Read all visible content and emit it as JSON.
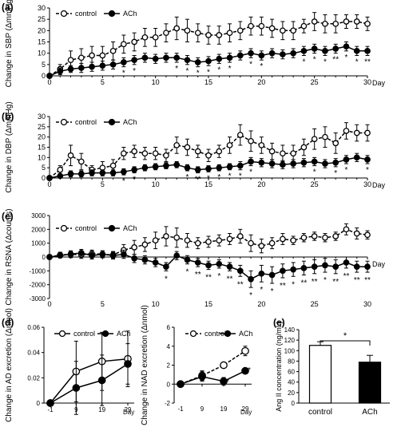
{
  "panels": {
    "a": {
      "letter": "(a)"
    },
    "b": {
      "letter": "(b)"
    },
    "c": {
      "letter": "(c)"
    },
    "d": {
      "letter": "(d)"
    },
    "e": {
      "letter": "(e)"
    }
  },
  "chart_data": [
    {
      "id": "a",
      "type": "line",
      "xlabel": "Day",
      "ylabel": "Change in SBP (ΔmmHg)",
      "xlim": [
        0,
        30
      ],
      "ylim": [
        0,
        30
      ],
      "xticks": [
        0,
        5,
        10,
        15,
        20,
        25,
        30
      ],
      "yticks": [
        0,
        5,
        10,
        15,
        20,
        25,
        30
      ],
      "legend_position": "top-left",
      "series": [
        {
          "name": "control",
          "marker": "open-circle",
          "line": "dashed",
          "x": [
            0,
            1,
            2,
            3,
            4,
            5,
            6,
            7,
            8,
            9,
            10,
            11,
            12,
            13,
            14,
            15,
            16,
            17,
            18,
            19,
            20,
            21,
            22,
            23,
            24,
            25,
            26,
            27,
            28,
            29,
            30
          ],
          "y": [
            0,
            3,
            7,
            8,
            9,
            9,
            11,
            14,
            15,
            17,
            17,
            19,
            21,
            20,
            19,
            18,
            18,
            19,
            20,
            22,
            22,
            21,
            20,
            20,
            22,
            24,
            23,
            23,
            24,
            24,
            23
          ],
          "err": [
            0,
            2,
            4,
            4,
            4,
            4,
            4,
            4,
            4,
            4,
            4,
            4,
            5,
            5,
            4,
            4,
            4,
            4,
            4,
            4,
            4,
            4,
            4,
            4,
            3,
            4,
            4,
            4,
            3,
            3,
            3
          ]
        },
        {
          "name": "ACh",
          "marker": "filled-circle",
          "line": "solid",
          "x": [
            0,
            1,
            2,
            3,
            4,
            5,
            6,
            7,
            8,
            9,
            10,
            11,
            12,
            13,
            14,
            15,
            16,
            17,
            18,
            19,
            20,
            21,
            22,
            23,
            24,
            25,
            26,
            27,
            28,
            29,
            30
          ],
          "y": [
            0,
            2,
            3,
            3.5,
            4,
            4.5,
            5,
            6,
            7,
            8,
            7.5,
            8,
            8,
            7,
            6,
            6.5,
            7.5,
            8,
            9,
            10,
            9,
            10,
            9.5,
            10,
            11,
            12,
            11,
            12,
            13,
            11,
            11
          ],
          "err": [
            0,
            1.5,
            1.5,
            2,
            2,
            2,
            2,
            2,
            2,
            2,
            2,
            2,
            2,
            2,
            2,
            2,
            2,
            2,
            2,
            2,
            2,
            2,
            2,
            2,
            2,
            2,
            2,
            2,
            2,
            2,
            2
          ]
        }
      ],
      "significance": [
        {
          "x": 7,
          "mark": "*"
        },
        {
          "x": 8,
          "mark": "*"
        },
        {
          "x": 12,
          "mark": "*"
        },
        {
          "x": 13,
          "mark": "*"
        },
        {
          "x": 14,
          "mark": "*"
        },
        {
          "x": 15,
          "mark": "*"
        },
        {
          "x": 16,
          "mark": "*"
        },
        {
          "x": 17,
          "mark": "*"
        },
        {
          "x": 19,
          "mark": "*"
        },
        {
          "x": 20,
          "mark": "*"
        },
        {
          "x": 24,
          "mark": "*"
        },
        {
          "x": 25,
          "mark": "*"
        },
        {
          "x": 26,
          "mark": "*"
        },
        {
          "x": 27,
          "mark": "**"
        },
        {
          "x": 28,
          "mark": "*"
        },
        {
          "x": 29,
          "mark": "*"
        },
        {
          "x": 30,
          "mark": "**"
        }
      ]
    },
    {
      "id": "b",
      "type": "line",
      "xlabel": "Day",
      "ylabel": "Change in DBP (ΔmmHg)",
      "xlim": [
        0,
        30
      ],
      "ylim": [
        0,
        30
      ],
      "xticks": [
        0,
        5,
        10,
        15,
        20,
        25,
        30
      ],
      "yticks": [
        0,
        5,
        10,
        15,
        20,
        25,
        30
      ],
      "legend_position": "top-left",
      "series": [
        {
          "name": "control",
          "marker": "open-circle",
          "line": "dashed",
          "x": [
            0,
            1,
            2,
            3,
            4,
            5,
            6,
            7,
            8,
            9,
            10,
            11,
            12,
            13,
            14,
            15,
            16,
            17,
            18,
            19,
            20,
            21,
            22,
            23,
            24,
            25,
            26,
            27,
            28,
            29,
            30
          ],
          "y": [
            0,
            4,
            11,
            8,
            4,
            5,
            6,
            12,
            13,
            12,
            12,
            11,
            16,
            15,
            13,
            11,
            13,
            16,
            21,
            18,
            16,
            13,
            12,
            12,
            15,
            19,
            20,
            17,
            23,
            22,
            22
          ],
          "err": [
            0,
            2,
            5,
            4,
            2,
            3,
            3,
            3,
            3,
            3,
            3,
            3,
            4,
            4,
            3,
            3,
            3,
            4,
            5,
            5,
            4,
            4,
            4,
            4,
            4,
            5,
            5,
            5,
            4,
            4,
            4
          ]
        },
        {
          "name": "ACh",
          "marker": "filled-circle",
          "line": "solid",
          "x": [
            0,
            1,
            2,
            3,
            4,
            5,
            6,
            7,
            8,
            9,
            10,
            11,
            12,
            13,
            14,
            15,
            16,
            17,
            18,
            19,
            20,
            21,
            22,
            23,
            24,
            25,
            26,
            27,
            28,
            29,
            30
          ],
          "y": [
            0,
            1,
            2,
            2,
            2.5,
            2.5,
            2.5,
            3,
            4,
            5,
            5.5,
            6,
            6.5,
            5,
            4,
            4.5,
            5,
            5.5,
            6,
            8,
            7.5,
            7,
            6.5,
            7,
            7.5,
            8,
            7,
            7.5,
            9,
            10,
            9
          ],
          "err": [
            0,
            1,
            1.5,
            1.5,
            1.5,
            1.5,
            1.5,
            1.5,
            1.5,
            1.5,
            1.5,
            1.5,
            1.5,
            1.5,
            1.5,
            1.5,
            1.5,
            1.5,
            2,
            2,
            2,
            2,
            2,
            2,
            2,
            2,
            2,
            2,
            2,
            2,
            2
          ]
        }
      ],
      "significance": [
        {
          "x": 7,
          "mark": "*"
        },
        {
          "x": 8,
          "mark": "*"
        },
        {
          "x": 13,
          "mark": "*"
        },
        {
          "x": 14,
          "mark": "**"
        },
        {
          "x": 15,
          "mark": "*"
        },
        {
          "x": 16,
          "mark": "*"
        },
        {
          "x": 17,
          "mark": "*"
        },
        {
          "x": 18,
          "mark": "*"
        },
        {
          "x": 19,
          "mark": "*"
        },
        {
          "x": 25,
          "mark": "*"
        },
        {
          "x": 27,
          "mark": "*"
        },
        {
          "x": 28,
          "mark": "*"
        },
        {
          "x": 30,
          "mark": "*"
        }
      ]
    },
    {
      "id": "c",
      "type": "line",
      "xlabel": "Day",
      "ylabel": "Change in RSNA (Δcounts)",
      "xlim": [
        0,
        30
      ],
      "ylim": [
        -3000,
        3000
      ],
      "xticks": [
        0,
        5,
        10,
        15,
        20,
        25,
        30
      ],
      "yticks": [
        -3000,
        -2000,
        -1000,
        0,
        1000,
        2000,
        3000
      ],
      "legend_position": "top-left",
      "series": [
        {
          "name": "control",
          "marker": "open-circle",
          "line": "dashed",
          "x": [
            0,
            1,
            2,
            3,
            4,
            5,
            6,
            7,
            8,
            9,
            10,
            11,
            12,
            13,
            14,
            15,
            16,
            17,
            18,
            19,
            20,
            21,
            22,
            23,
            24,
            25,
            26,
            27,
            28,
            29,
            30
          ],
          "y": [
            0,
            150,
            200,
            150,
            250,
            200,
            150,
            500,
            700,
            900,
            1200,
            1500,
            1400,
            1200,
            1000,
            1100,
            1200,
            1300,
            1500,
            1000,
            800,
            1000,
            1300,
            1200,
            1400,
            1500,
            1400,
            1500,
            2000,
            1700,
            1600
          ],
          "err": [
            0,
            200,
            250,
            250,
            250,
            250,
            250,
            400,
            500,
            500,
            600,
            700,
            700,
            500,
            400,
            400,
            400,
            400,
            500,
            600,
            500,
            400,
            400,
            300,
            300,
            300,
            300,
            300,
            400,
            400,
            300
          ]
        },
        {
          "name": "ACh",
          "marker": "filled-circle",
          "line": "solid",
          "x": [
            0,
            1,
            2,
            3,
            4,
            5,
            6,
            7,
            8,
            9,
            10,
            11,
            12,
            13,
            14,
            15,
            16,
            17,
            18,
            19,
            20,
            21,
            22,
            23,
            24,
            25,
            26,
            27,
            28,
            29,
            30
          ],
          "y": [
            0,
            100,
            200,
            300,
            100,
            200,
            100,
            200,
            -100,
            -200,
            -400,
            -700,
            100,
            -200,
            -400,
            -600,
            -500,
            -700,
            -1000,
            -1600,
            -1200,
            -1300,
            -1000,
            -900,
            -800,
            -700,
            -600,
            -700,
            -400,
            -700,
            -700
          ],
          "err": [
            0,
            150,
            200,
            250,
            250,
            250,
            250,
            300,
            300,
            300,
            300,
            300,
            300,
            300,
            300,
            300,
            300,
            300,
            400,
            600,
            600,
            600,
            500,
            500,
            500,
            500,
            500,
            500,
            400,
            400,
            400
          ]
        }
      ],
      "significance": [
        {
          "x": 11,
          "mark": "*"
        },
        {
          "x": 13,
          "mark": "*"
        },
        {
          "x": 14,
          "mark": "**"
        },
        {
          "x": 15,
          "mark": "**"
        },
        {
          "x": 16,
          "mark": "*"
        },
        {
          "x": 17,
          "mark": "**"
        },
        {
          "x": 18,
          "mark": "**"
        },
        {
          "x": 19,
          "mark": "*"
        },
        {
          "x": 20,
          "mark": "*"
        },
        {
          "x": 21,
          "mark": "*"
        },
        {
          "x": 22,
          "mark": "**"
        },
        {
          "x": 23,
          "mark": "*"
        },
        {
          "x": 24,
          "mark": "**"
        },
        {
          "x": 25,
          "mark": "**"
        },
        {
          "x": 26,
          "mark": "*"
        },
        {
          "x": 27,
          "mark": "**"
        },
        {
          "x": 28,
          "mark": "**"
        },
        {
          "x": 29,
          "mark": "**"
        },
        {
          "x": 30,
          "mark": "**"
        }
      ]
    },
    {
      "id": "d1",
      "type": "line",
      "xlabel": "Day",
      "ylabel": "Change in AD excretion (Δnmol)",
      "ylim": [
        0,
        0.06
      ],
      "yticks": [
        0,
        0.02,
        0.04,
        0.06
      ],
      "xticks": [
        -1,
        9,
        19,
        29
      ],
      "legend_position": "top",
      "series": [
        {
          "name": "control",
          "marker": "open-circle",
          "line": "solid",
          "x": [
            -1,
            9,
            19,
            29
          ],
          "y": [
            0,
            0.025,
            0.033,
            0.035
          ],
          "err": [
            0,
            0.024,
            0.023,
            0.022
          ]
        },
        {
          "name": "ACh",
          "marker": "filled-circle",
          "line": "solid",
          "x": [
            -1,
            9,
            19,
            29
          ],
          "y": [
            0,
            0.012,
            0.018,
            0.031
          ],
          "err": [
            0,
            0.021,
            0.02,
            0.016
          ]
        }
      ]
    },
    {
      "id": "d2",
      "type": "line",
      "xlabel": "Day",
      "ylabel": "Change in NAD excretion (Δnmol)",
      "ylim": [
        -2,
        6
      ],
      "yticks": [
        -2,
        0,
        2,
        4,
        6
      ],
      "xticks": [
        -1,
        9,
        19,
        29
      ],
      "legend_position": "top",
      "series": [
        {
          "name": "control",
          "marker": "open-circle",
          "line": "dashed",
          "x": [
            -1,
            9,
            19,
            29
          ],
          "y": [
            0,
            0.9,
            2.0,
            3.5
          ],
          "err": [
            0,
            0.5,
            0.3,
            0.5
          ]
        },
        {
          "name": "ACh",
          "marker": "filled-circle",
          "line": "solid",
          "x": [
            -1,
            9,
            19,
            29
          ],
          "y": [
            0,
            0.8,
            0.3,
            1.4
          ],
          "err": [
            0,
            0.5,
            0.4,
            0.3
          ]
        }
      ],
      "significance": [
        {
          "x": 19,
          "mark": "*"
        },
        {
          "x": 29,
          "mark": "*"
        }
      ]
    },
    {
      "id": "e",
      "type": "bar",
      "ylabel": "Ang II concentration (ng/mL)",
      "ylim": [
        0,
        140
      ],
      "yticks": [
        0,
        20,
        40,
        60,
        80,
        100,
        120,
        140
      ],
      "categories": [
        "control",
        "ACh"
      ],
      "values": [
        110,
        78
      ],
      "err": [
        7,
        13
      ],
      "colors": [
        "#ffffff",
        "#000000"
      ],
      "significance": [
        {
          "between": [
            "control",
            "ACh"
          ],
          "mark": "*"
        }
      ]
    }
  ]
}
